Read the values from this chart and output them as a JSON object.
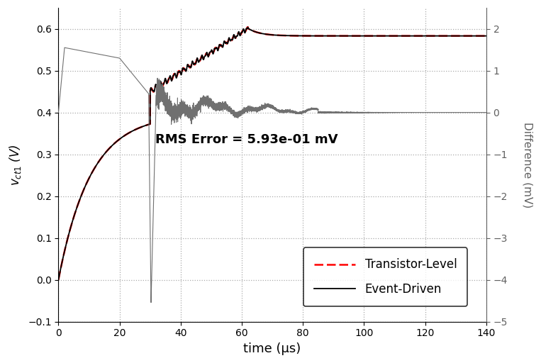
{
  "xlabel": "time (μs)",
  "ylabel_left": "$v_{ct1}$ (V)",
  "ylabel_right": "Difference (mV)",
  "xlim": [
    0,
    140
  ],
  "ylim_left": [
    -0.1,
    0.65
  ],
  "ylim_right": [
    -5,
    2.5
  ],
  "yticks_left": [
    -0.1,
    0,
    0.1,
    0.2,
    0.3,
    0.4,
    0.5,
    0.6
  ],
  "yticks_right": [
    -5,
    -4,
    -3,
    -2,
    -1,
    0,
    1,
    2
  ],
  "xticks": [
    0,
    20,
    40,
    60,
    80,
    100,
    120,
    140
  ],
  "annotation": "RMS Error = 5.93e-01 mV",
  "legend_entries": [
    "Event-Driven",
    "Transistor-Level"
  ],
  "diff_color": "#707070",
  "grid_color": "#aaaaaa",
  "background_color": "#ffffff",
  "right_axis_color": "#606060"
}
